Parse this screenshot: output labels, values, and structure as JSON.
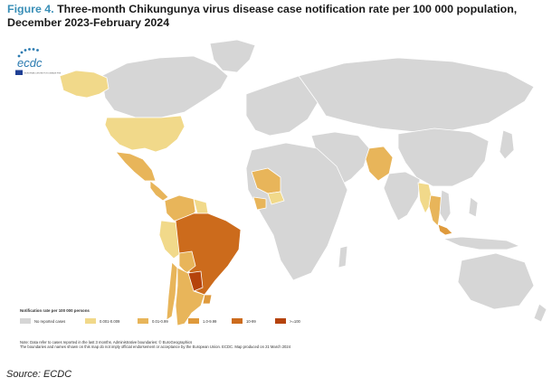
{
  "figure": {
    "label": "Figure 4.",
    "title": "Three-month Chikungunya virus disease case notification rate per 100 000 population, December 2023-February 2024"
  },
  "logo": {
    "text": "ecdc",
    "subtext": "EUROPEAN CENTRE FOR DISEASE PREVENTION AND CONTROL"
  },
  "legend": {
    "title": "Notification rate per 100 000 persons",
    "items": [
      {
        "label": "No reported cases",
        "color": "#d6d6d6"
      },
      {
        "label": "0.001-0.009",
        "color": "#f1d98a"
      },
      {
        "label": "0.01-0.99",
        "color": "#e8b55a"
      },
      {
        "label": "1.0-9.99",
        "color": "#df9a3c"
      },
      {
        "label": "10-99",
        "color": "#cc6b1c"
      },
      {
        "label": ">=100",
        "color": "#b5430c"
      }
    ]
  },
  "notes": [
    "Note: Data refer to cases reported in the last 3 months. Administrative boundaries: © EuroGeographics",
    "The boundaries and names shown on this map do not imply official endorsement or acceptance by the European Union. ECDC. Map produced on 21 March 2024"
  ],
  "source": "Source: ECDC",
  "map_colors": {
    "no_cases": "#d6d6d6",
    "border": "#ffffff",
    "ocean": "#ffffff"
  }
}
